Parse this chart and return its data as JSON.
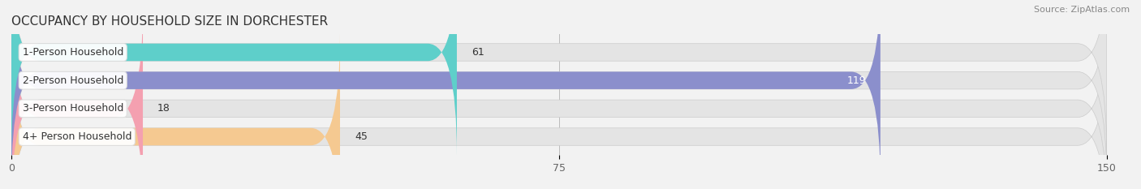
{
  "title": "OCCUPANCY BY HOUSEHOLD SIZE IN DORCHESTER",
  "source": "Source: ZipAtlas.com",
  "categories": [
    "1-Person Household",
    "2-Person Household",
    "3-Person Household",
    "4+ Person Household"
  ],
  "values": [
    61,
    119,
    18,
    45
  ],
  "bar_colors": [
    "#5ecfca",
    "#8b8fcc",
    "#f4a0b0",
    "#f5c991"
  ],
  "value_label_colors": [
    "#333333",
    "#ffffff",
    "#333333",
    "#333333"
  ],
  "xlim": [
    0,
    150
  ],
  "xticks": [
    0,
    75,
    150
  ],
  "background_color": "#f2f2f2",
  "bar_background_color": "#e4e4e4",
  "title_fontsize": 11,
  "source_fontsize": 8,
  "label_fontsize": 9,
  "value_fontsize": 9,
  "tick_fontsize": 9,
  "bar_height": 0.62
}
